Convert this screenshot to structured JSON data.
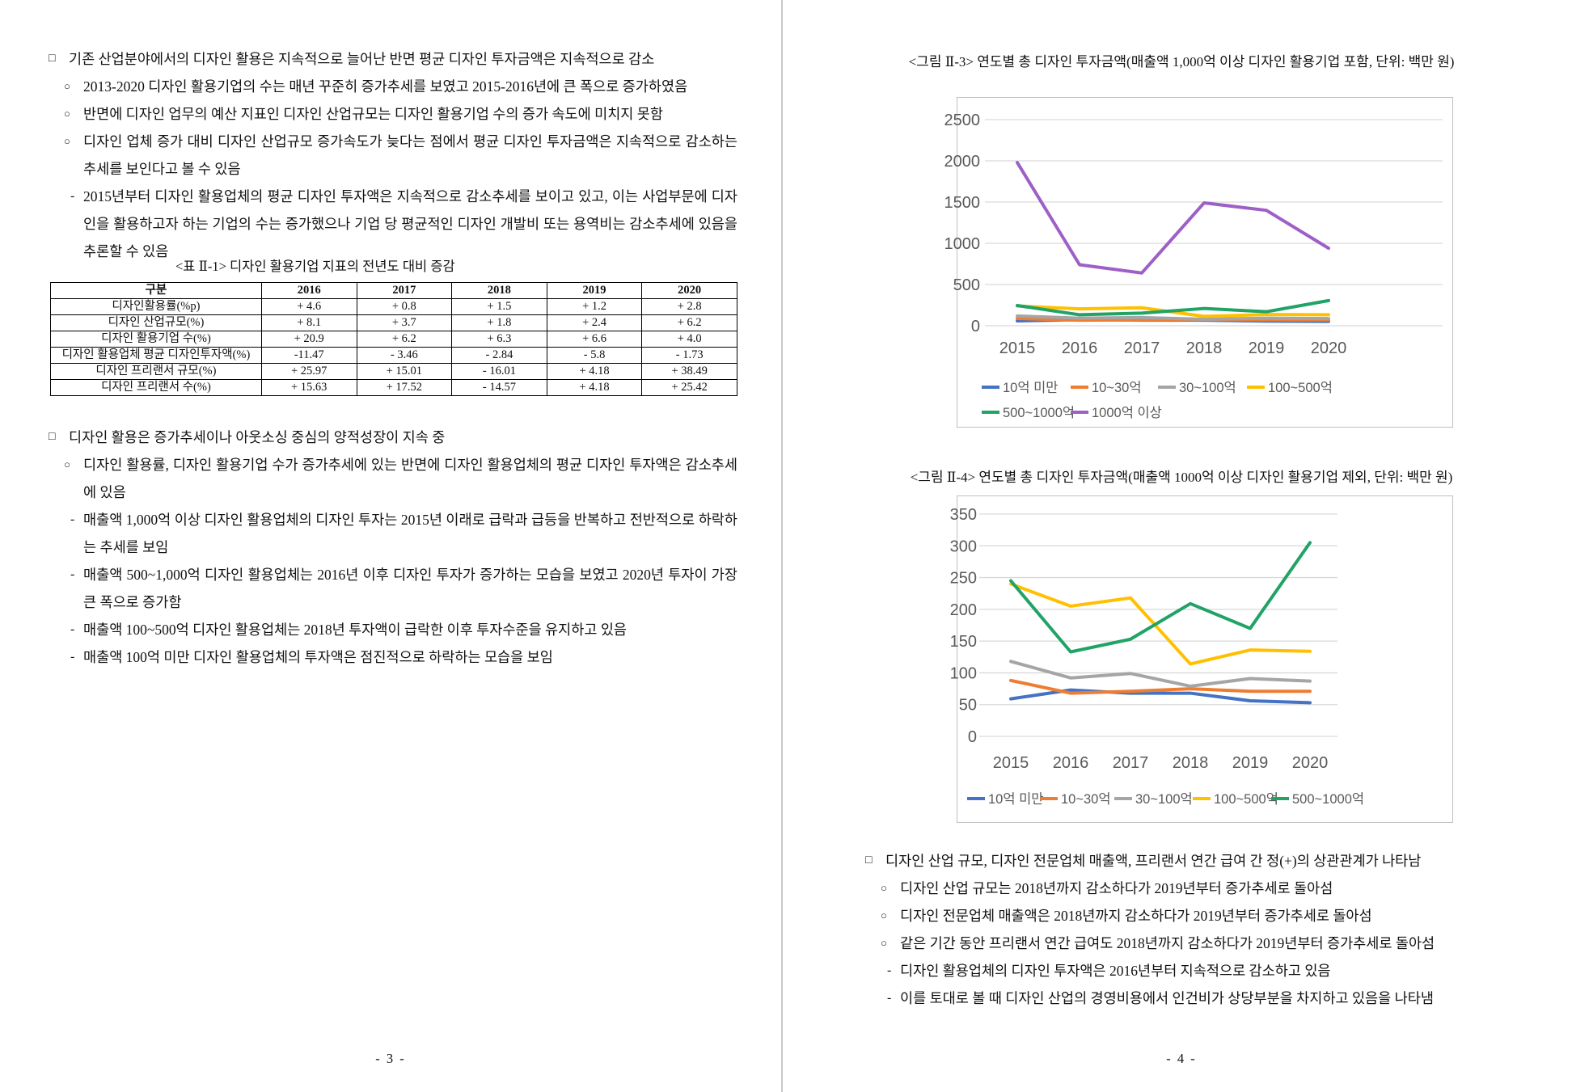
{
  "page3": {
    "blocks1": [
      {
        "marker": "□",
        "level": 0,
        "text": "기존 산업분야에서의 디자인 활용은 지속적으로 늘어난 반면 평균 디자인 투자금액은 지속적으로 감소"
      },
      {
        "marker": "○",
        "level": 1,
        "text": "2013-2020 디자인 활용기업의 수는 매년 꾸준히 증가추세를 보였고 2015-2016년에 큰 폭으로 증가하였음"
      },
      {
        "marker": "○",
        "level": 1,
        "text": "반면에 디자인 업무의 예산 지표인 디자인 산업규모는 디자인 활용기업 수의 증가 속도에 미치지 못함"
      },
      {
        "marker": "○",
        "level": 1,
        "text": "디자인 업체 증가 대비 디자인 산업규모 증가속도가 늦다는 점에서 평균 디자인 투자금액은 지속적으로 감소하는 추세를 보인다고 볼 수 있음"
      },
      {
        "marker": "-",
        "level": 2,
        "text": "2015년부터 디자인 활용업체의 평균 디자인 투자액은 지속적으로 감소추세를 보이고 있고, 이는 사업부문에 디자인을 활용하고자 하는 기업의 수는 증가했으나 기업 당 평균적인 디자인 개발비 또는 용역비는 감소추세에 있음을 추론할 수 있음"
      }
    ],
    "table": {
      "title": "<표 Ⅱ-1> 디자인 활용기업 지표의 전년도 대비 증감",
      "columns": [
        "구분",
        "2016",
        "2017",
        "2018",
        "2019",
        "2020"
      ],
      "rows": [
        {
          "label": "디자인활용률(%p)",
          "values": [
            "+ 4.6",
            "+ 0.8",
            "+ 1.5",
            "+ 1.2",
            "+ 2.8"
          ]
        },
        {
          "label": "디자인 산업규모(%)",
          "values": [
            "+ 8.1",
            "+ 3.7",
            "+ 1.8",
            "+ 2.4",
            "+ 6.2"
          ]
        },
        {
          "label": "디자인 활용기업 수(%)",
          "values": [
            "+ 20.9",
            "+ 6.2",
            "+ 6.3",
            "+ 6.6",
            "+ 4.0"
          ]
        },
        {
          "label": "디자인 활용업체 평균 디자인투자액(%)",
          "values": [
            "-11.47",
            "- 3.46",
            "- 2.84",
            "- 5.8",
            "- 1.73"
          ]
        },
        {
          "label": "디자인 프리랜서 규모(%)",
          "values": [
            "+ 25.97",
            "+ 15.01",
            "- 16.01",
            "+ 4.18",
            "+ 38.49"
          ]
        },
        {
          "label": "디자인 프리랜서 수(%)",
          "values": [
            "+ 15.63",
            "+ 17.52",
            "- 14.57",
            "+ 4.18",
            "+ 25.42"
          ]
        }
      ]
    },
    "blocks2": [
      {
        "marker": "□",
        "level": 0,
        "text": "디자인 활용은 증가추세이나 아웃소싱 중심의 양적성장이 지속 중"
      },
      {
        "marker": "○",
        "level": 1,
        "text": "디자인 활용률, 디자인 활용기업 수가 증가추세에 있는 반면에 디자인 활용업체의 평균 디자인 투자액은 감소추세에 있음"
      },
      {
        "marker": "-",
        "level": 2,
        "text": "매출액 1,000억 이상 디자인 활용업체의 디자인 투자는 2015년 이래로 급락과 급등을 반복하고 전반적으로 하락하는 추세를 보임"
      },
      {
        "marker": "-",
        "level": 2,
        "text": "매출액 500~1,000억 디자인 활용업체는 2016년 이후 디자인 투자가 증가하는 모습을 보였고 2020년 투자이 가장 큰 폭으로 증가함"
      },
      {
        "marker": "-",
        "level": 2,
        "text": "매출액 100~500억 디자인 활용업체는 2018년 투자액이 급락한 이후 투자수준을 유지하고 있음"
      },
      {
        "marker": "-",
        "level": 2,
        "text": "매출액 100억 미만 디자인 활용업체의 투자액은 점진적으로 하락하는 모습을 보임"
      }
    ],
    "page_number": "- 3 -"
  },
  "page4": {
    "blocks": [
      {
        "marker": "□",
        "level": 0,
        "text": "디자인 산업 규모, 디자인 전문업체 매출액, 프리랜서 연간 급여 간 정(+)의 상관관계가 나타남"
      },
      {
        "marker": "○",
        "level": 1,
        "text": "디자인 산업 규모는 2018년까지 감소하다가 2019년부터 증가추세로 돌아섬"
      },
      {
        "marker": "○",
        "level": 1,
        "text": "디자인 전문업체 매출액은 2018년까지 감소하다가 2019년부터 증가추세로 돌아섬"
      },
      {
        "marker": "○",
        "level": 1,
        "text": "같은 기간 동안 프리랜서 연간 급여도 2018년까지 감소하다가 2019년부터 증가추세로 돌아섬"
      },
      {
        "marker": "-",
        "level": 2,
        "text": "디자인 활용업체의 디자인 투자액은 2016년부터 지속적으로 감소하고 있음"
      },
      {
        "marker": "-",
        "level": 2,
        "text": "이를 토대로 볼 때 디자인 산업의 경영비용에서 인건비가 상당부분을 차지하고 있음을 나타냄"
      }
    ],
    "page_number": "- 4 -"
  },
  "chart_data": [
    {
      "type": "line",
      "title": "<그림 Ⅱ-3> 연도별 총 디자인 투자금액(매출액 1,000억 이상 디자인 활용기업 포함, 단위: 백만 원)",
      "categories": [
        "2015",
        "2016",
        "2017",
        "2018",
        "2019",
        "2020"
      ],
      "xlabel": "",
      "ylabel": "",
      "ylim": [
        0,
        2500
      ],
      "ystep": 500,
      "grid": true,
      "legend_position": "bottom",
      "series": [
        {
          "name": "10억 미만",
          "color": "#4472C4",
          "values": [
            59,
            73,
            68,
            68,
            56,
            53
          ]
        },
        {
          "name": "10~30억",
          "color": "#ED7D31",
          "values": [
            88,
            68,
            71,
            75,
            71,
            71
          ]
        },
        {
          "name": "30~100억",
          "color": "#A5A5A5",
          "values": [
            118,
            92,
            99,
            79,
            91,
            87
          ]
        },
        {
          "name": "100~500억",
          "color": "#FFC000",
          "values": [
            240,
            205,
            218,
            114,
            136,
            134
          ]
        },
        {
          "name": "500~1000억",
          "color": "#21A366",
          "values": [
            245,
            133,
            153,
            209,
            170,
            305
          ]
        },
        {
          "name": "1000억 이상",
          "color": "#9E5FC6",
          "values": [
            1980,
            740,
            640,
            1490,
            1400,
            940
          ]
        }
      ],
      "legend_rows": [
        [
          0,
          1,
          2,
          3
        ],
        [
          4,
          5
        ]
      ]
    },
    {
      "type": "line",
      "title": "<그림 Ⅱ-4> 연도별 총 디자인 투자금액(매출액 1000억 이상 디자인 활용기업 제외, 단위: 백만 원)",
      "categories": [
        "2015",
        "2016",
        "2017",
        "2018",
        "2019",
        "2020"
      ],
      "xlabel": "",
      "ylabel": "",
      "ylim": [
        0,
        350
      ],
      "ystep": 50,
      "grid": true,
      "legend_position": "bottom",
      "series": [
        {
          "name": "10억 미만",
          "color": "#4472C4",
          "values": [
            59,
            73,
            68,
            68,
            56,
            53
          ]
        },
        {
          "name": "10~30억",
          "color": "#ED7D31",
          "values": [
            88,
            68,
            71,
            75,
            71,
            71
          ]
        },
        {
          "name": "30~100억",
          "color": "#A5A5A5",
          "values": [
            118,
            92,
            99,
            79,
            91,
            87
          ]
        },
        {
          "name": "100~500억",
          "color": "#FFC000",
          "values": [
            240,
            205,
            218,
            114,
            136,
            134
          ]
        },
        {
          "name": "500~1000억",
          "color": "#21A366",
          "values": [
            245,
            133,
            153,
            209,
            170,
            305
          ]
        }
      ],
      "legend_rows": [
        [
          0,
          1,
          2,
          3,
          4
        ]
      ]
    }
  ]
}
